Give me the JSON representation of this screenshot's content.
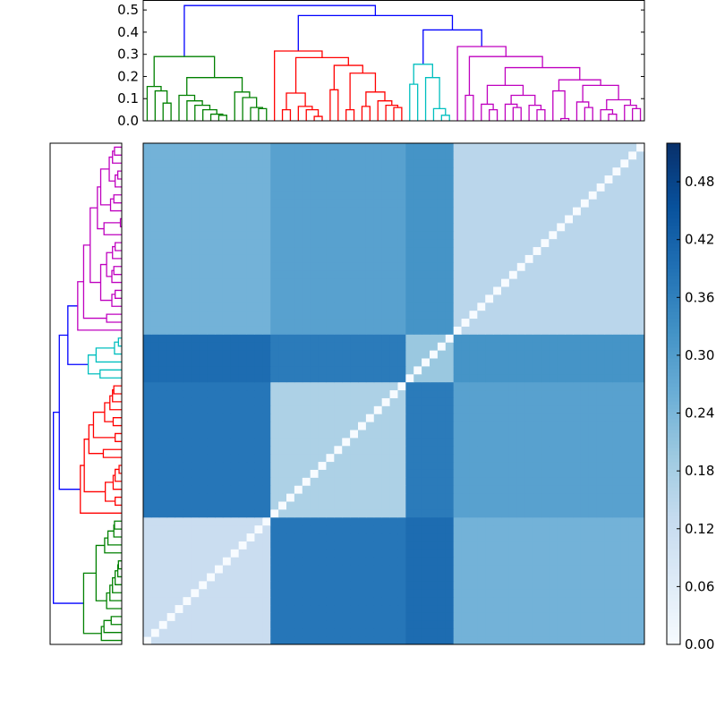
{
  "chart_data": {
    "type": "heatmap",
    "colormap": "Blues",
    "colorbar": {
      "range": [
        0.0,
        0.52
      ],
      "ticks": [
        "0.00",
        "0.06",
        "0.12",
        "0.18",
        "0.24",
        "0.30",
        "0.36",
        "0.42",
        "0.48"
      ]
    },
    "dendrogram_axis": {
      "ylim": [
        0,
        0.545
      ],
      "ticks": [
        "0.0",
        "0.1",
        "0.2",
        "0.3",
        "0.4",
        "0.5"
      ]
    },
    "above_threshold_color": "#0000ff",
    "clusters": [
      {
        "color": "#008000",
        "tree": {
          "h": 0.29,
          "k": [
            {
              "h": 0.155,
              "k": [
                0,
                {
                  "h": 0.135,
                  "k": [
                    0,
                    {
                      "h": 0.08,
                      "k": [
                        0,
                        0
                      ]
                    }
                  ]
                }
              ]
            },
            {
              "h": 0.195,
              "k": [
                {
                  "h": 0.115,
                  "k": [
                    0,
                    {
                      "h": 0.09,
                      "k": [
                        0,
                        {
                          "h": 0.07,
                          "k": [
                            0,
                            {
                              "h": 0.05,
                              "k": [
                                0,
                                {
                                  "h": 0.03,
                                  "k": [
                                    0,
                                    {
                                      "h": 0.025,
                                      "k": [
                                        0,
                                        0
                                      ]
                                    }
                                  ]
                                }
                              ]
                            }
                          ]
                        }
                      ]
                    }
                  ]
                },
                {
                  "h": 0.13,
                  "k": [
                    0,
                    {
                      "h": 0.105,
                      "k": [
                        0,
                        {
                          "h": 0.06,
                          "k": [
                            0,
                            {
                              "h": 0.055,
                              "k": [
                                0,
                                0
                              ]
                            }
                          ]
                        }
                      ]
                    }
                  ]
                }
              ]
            }
          ]
        }
      },
      {
        "color": "#ff0000",
        "tree": {
          "h": 0.315,
          "k": [
            0,
            {
              "h": 0.285,
              "k": [
                {
                  "h": 0.125,
                  "k": [
                    {
                      "h": 0.05,
                      "k": [
                        0,
                        0
                      ]
                    },
                    {
                      "h": 0.065,
                      "k": [
                        0,
                        {
                          "h": 0.05,
                          "k": [
                            0,
                            {
                              "h": 0.02,
                              "k": [
                                0,
                                0
                              ]
                            }
                          ]
                        }
                      ]
                    }
                  ]
                },
                {
                  "h": 0.25,
                  "k": [
                    {
                      "h": 0.14,
                      "k": [
                        0,
                        0
                      ]
                    },
                    {
                      "h": 0.215,
                      "k": [
                        {
                          "h": 0.05,
                          "k": [
                            0,
                            0
                          ]
                        },
                        {
                          "h": 0.13,
                          "k": [
                            {
                              "h": 0.065,
                              "k": [
                                0,
                                0
                              ]
                            },
                            {
                              "h": 0.09,
                              "k": [
                                0,
                                {
                                  "h": 0.07,
                                  "k": [
                                    0,
                                    {
                                      "h": 0.06,
                                      "k": [
                                        0,
                                        0
                                      ]
                                    }
                                  ]
                                }
                              ]
                            }
                          ]
                        }
                      ]
                    }
                  ]
                }
              ]
            }
          ]
        }
      },
      {
        "color": "#00bfbf",
        "tree": {
          "h": 0.255,
          "k": [
            {
              "h": 0.165,
              "k": [
                0,
                0
              ]
            },
            {
              "h": 0.195,
              "k": [
                0,
                {
                  "h": 0.055,
                  "k": [
                    0,
                    {
                      "h": 0.025,
                      "k": [
                        0,
                        0
                      ]
                    }
                  ]
                }
              ]
            }
          ]
        }
      },
      {
        "color": "#bf00bf",
        "tree": {
          "h": 0.335,
          "k": [
            0,
            {
              "h": 0.29,
              "k": [
                {
                  "h": 0.115,
                  "k": [
                    0,
                    0
                  ]
                },
                {
                  "h": 0.24,
                  "k": [
                    {
                      "h": 0.16,
                      "k": [
                        {
                          "h": 0.075,
                          "k": [
                            0,
                            {
                              "h": 0.05,
                              "k": [
                                0,
                                0
                              ]
                            }
                          ]
                        },
                        {
                          "h": 0.115,
                          "k": [
                            {
                              "h": 0.075,
                              "k": [
                                0,
                                {
                                  "h": 0.06,
                                  "k": [
                                    0,
                                    0
                                  ]
                                }
                              ]
                            },
                            {
                              "h": 0.07,
                              "k": [
                                0,
                                {
                                  "h": 0.05,
                                  "k": [
                                    0,
                                    0
                                  ]
                                }
                              ]
                            }
                          ]
                        }
                      ]
                    },
                    {
                      "h": 0.185,
                      "k": [
                        {
                          "h": 0.135,
                          "k": [
                            0,
                            {
                              "h": 0.01,
                              "k": [
                                0,
                                0
                              ]
                            }
                          ]
                        },
                        {
                          "h": 0.16,
                          "k": [
                            {
                              "h": 0.085,
                              "k": [
                                0,
                                {
                                  "h": 0.06,
                                  "k": [
                                    0,
                                    0
                                  ]
                                }
                              ]
                            },
                            {
                              "h": 0.095,
                              "k": [
                                {
                                  "h": 0.05,
                                  "k": [
                                    0,
                                    {
                                      "h": 0.03,
                                      "k": [
                                        0,
                                        0
                                      ]
                                    }
                                  ]
                                },
                                {
                                  "h": 0.07,
                                  "k": [
                                    0,
                                    {
                                      "h": 0.055,
                                      "k": [
                                        0,
                                        0
                                      ]
                                    }
                                  ]
                                }
                              ]
                            }
                          ]
                        }
                      ]
                    }
                  ]
                }
              ]
            }
          ]
        }
      }
    ],
    "root_structure": {
      "h": 0.52,
      "k": [
        "c0",
        {
          "h": 0.475,
          "k": [
            "c1",
            {
              "h": 0.41,
              "k": [
                "c2",
                "c3"
              ]
            }
          ]
        }
      ]
    },
    "cluster_mean_distances": [
      [
        0.12,
        0.38,
        0.4,
        0.25
      ],
      [
        0.38,
        0.17,
        0.37,
        0.29
      ],
      [
        0.4,
        0.37,
        0.2,
        0.32
      ],
      [
        0.25,
        0.29,
        0.32,
        0.15
      ]
    ]
  }
}
